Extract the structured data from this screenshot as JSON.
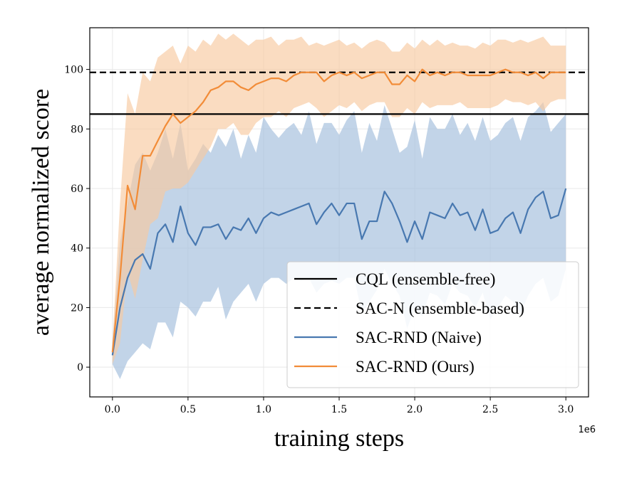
{
  "chart_data": {
    "type": "line",
    "title": "",
    "xlabel": "training steps",
    "ylabel": "average normalized score",
    "x_offset_label": "1e6",
    "xlim": [
      -0.15,
      3.15
    ],
    "ylim": [
      -10,
      114
    ],
    "xticks": [
      0.0,
      0.5,
      1.0,
      1.5,
      2.0,
      2.5,
      3.0
    ],
    "xtick_labels": [
      "0.0",
      "0.5",
      "1.0",
      "1.5",
      "2.0",
      "2.5",
      "3.0"
    ],
    "yticks": [
      0,
      20,
      40,
      60,
      80,
      100
    ],
    "ytick_labels": [
      "0",
      "20",
      "40",
      "60",
      "80",
      "100"
    ],
    "grid": true,
    "legend_position": "lower-right",
    "hlines": [
      {
        "name": "CQL (ensemble-free)",
        "y": 85,
        "style": "solid",
        "color": "#000000"
      },
      {
        "name": "SAC-N (ensemble-based)",
        "y": 99,
        "style": "dashed",
        "color": "#000000"
      }
    ],
    "x": [
      0.0,
      0.05,
      0.1,
      0.15,
      0.2,
      0.25,
      0.3,
      0.35,
      0.4,
      0.45,
      0.5,
      0.55,
      0.6,
      0.65,
      0.7,
      0.75,
      0.8,
      0.85,
      0.9,
      0.95,
      1.0,
      1.05,
      1.1,
      1.15,
      1.2,
      1.25,
      1.3,
      1.35,
      1.4,
      1.45,
      1.5,
      1.55,
      1.6,
      1.65,
      1.7,
      1.75,
      1.8,
      1.85,
      1.9,
      1.95,
      2.0,
      2.05,
      2.1,
      2.15,
      2.2,
      2.25,
      2.3,
      2.35,
      2.4,
      2.45,
      2.5,
      2.55,
      2.6,
      2.65,
      2.7,
      2.75,
      2.8,
      2.85,
      2.9,
      2.95,
      3.0
    ],
    "series": [
      {
        "name": "SAC-RND (Naive)",
        "color": "#4878b0",
        "band_color": "#a8c2de",
        "values": [
          4,
          20,
          30,
          36,
          38,
          33,
          45,
          48,
          42,
          54,
          45,
          41,
          47,
          47,
          48,
          43,
          47,
          46,
          50,
          45,
          50,
          52,
          51,
          52,
          53,
          54,
          55,
          48,
          52,
          55,
          51,
          55,
          55,
          43,
          49,
          49,
          59,
          55,
          49,
          42,
          49,
          43,
          52,
          51,
          50,
          55,
          51,
          52,
          46,
          53,
          45,
          46,
          50,
          52,
          45,
          53,
          57,
          59,
          50,
          51,
          60
        ],
        "upper": [
          8,
          42,
          55,
          68,
          72,
          66,
          72,
          80,
          70,
          82,
          66,
          70,
          75,
          72,
          78,
          74,
          80,
          70,
          78,
          72,
          84,
          80,
          77,
          80,
          82,
          78,
          86,
          75,
          82,
          82,
          78,
          83,
          86,
          72,
          82,
          76,
          88,
          80,
          72,
          74,
          83,
          70,
          84,
          80,
          80,
          85,
          78,
          82,
          76,
          84,
          76,
          78,
          82,
          84,
          76,
          84,
          86,
          89,
          79,
          82,
          85
        ],
        "lower": [
          1,
          -4,
          2,
          5,
          8,
          6,
          15,
          15,
          10,
          22,
          20,
          17,
          22,
          22,
          27,
          16,
          22,
          25,
          28,
          22,
          28,
          30,
          30,
          28,
          30,
          29,
          30,
          25,
          28,
          29,
          28,
          30,
          30,
          18,
          22,
          26,
          33,
          28,
          24,
          13,
          20,
          17,
          25,
          24,
          21,
          28,
          25,
          24,
          20,
          25,
          16,
          20,
          24,
          22,
          18,
          24,
          28,
          30,
          22,
          24,
          33
        ]
      },
      {
        "name": "SAC-RND (Ours)",
        "color": "#f28c38",
        "band_color": "#f7c9a0",
        "values": [
          5,
          30,
          61,
          53,
          71,
          71,
          76,
          81,
          85,
          82,
          84,
          86,
          89,
          93,
          94,
          96,
          96,
          94,
          93,
          95,
          96,
          97,
          97,
          96,
          98,
          99,
          99,
          99,
          96,
          98,
          99,
          98,
          99,
          97,
          98,
          99,
          99,
          95,
          95,
          98,
          96,
          100,
          98,
          99,
          98,
          99,
          99,
          98,
          98,
          98,
          98,
          99,
          100,
          99,
          99,
          98,
          99,
          97,
          99,
          99,
          99
        ],
        "upper": [
          8,
          55,
          92,
          85,
          99,
          96,
          104,
          106,
          108,
          102,
          108,
          106,
          110,
          108,
          112,
          110,
          112,
          110,
          108,
          110,
          110,
          111,
          108,
          110,
          110,
          111,
          108,
          109,
          108,
          109,
          110,
          108,
          109,
          107,
          109,
          110,
          109,
          106,
          106,
          109,
          107,
          110,
          108,
          110,
          108,
          109,
          108,
          108,
          107,
          109,
          108,
          110,
          110,
          109,
          110,
          109,
          110,
          111,
          108,
          108,
          108
        ],
        "lower": [
          1,
          8,
          32,
          23,
          36,
          48,
          50,
          59,
          60,
          60,
          62,
          66,
          70,
          74,
          80,
          80,
          82,
          78,
          78,
          82,
          84,
          84,
          86,
          84,
          87,
          88,
          89,
          87,
          84,
          86,
          88,
          87,
          89,
          86,
          88,
          89,
          89,
          84,
          84,
          87,
          85,
          89,
          87,
          88,
          88,
          88,
          89,
          87,
          87,
          87,
          87,
          88,
          90,
          89,
          89,
          88,
          89,
          86,
          89,
          90,
          90
        ]
      }
    ]
  }
}
